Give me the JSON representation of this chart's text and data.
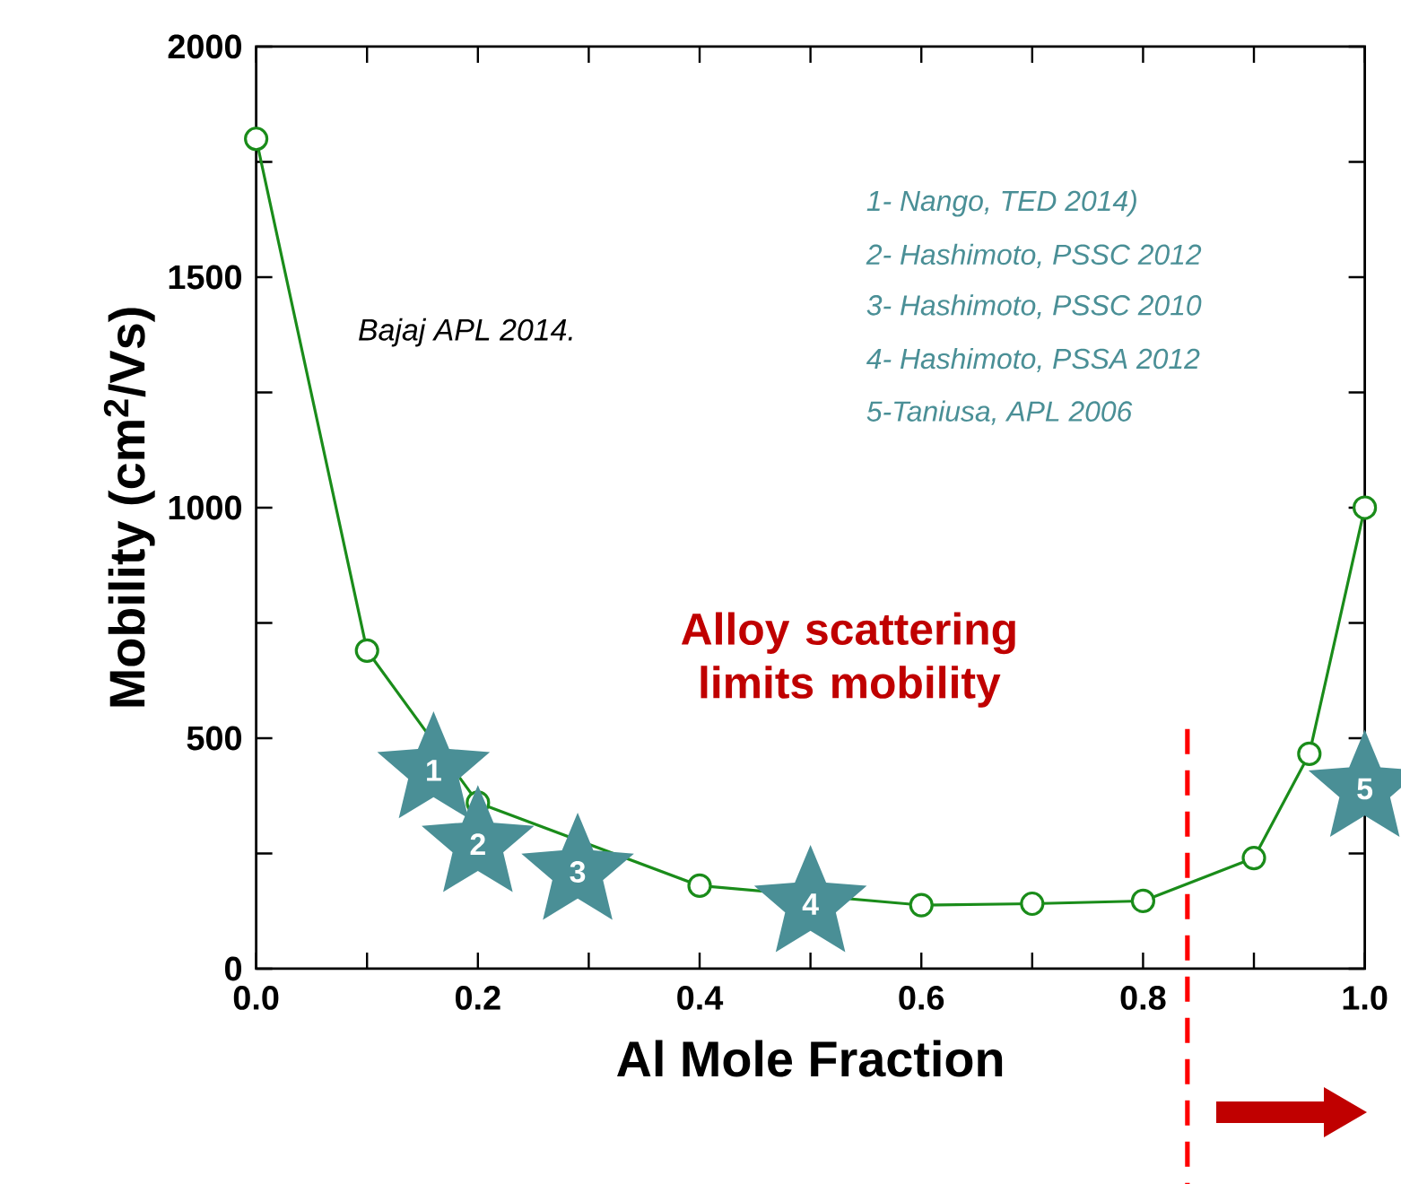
{
  "chart_data": {
    "type": "line",
    "xlabel": "Al Mole Fraction",
    "ylabel": "Mobility (cm$^{2}$/Vs)",
    "xlim": [
      0,
      1.0
    ],
    "ylim": [
      0,
      2000
    ],
    "xticks": [
      {
        "value": 0,
        "label": "0.0"
      },
      {
        "value": 0.1,
        "label": null
      },
      {
        "value": 0.2,
        "label": "0.2"
      },
      {
        "value": 0.3,
        "label": null
      },
      {
        "value": 0.4,
        "label": "0.4"
      },
      {
        "value": 0.5,
        "label": null
      },
      {
        "value": 0.6,
        "label": "0.6"
      },
      {
        "value": 0.7,
        "label": null
      },
      {
        "value": 0.8,
        "label": "0.8"
      },
      {
        "value": 0.9,
        "label": null
      },
      {
        "value": 1.0,
        "label": "1.0"
      }
    ],
    "yticks": [
      0,
      {
        "value": 250,
        "label": null
      },
      500,
      {
        "value": 750,
        "label": null
      },
      1000,
      {
        "value": 1250,
        "label": null
      },
      1500,
      {
        "value": 1750,
        "label": null
      },
      2000
    ],
    "series": [
      {
        "color": "#1a8c1a",
        "marker": "circle",
        "x": [
          0,
          0.1,
          0.2,
          0.4,
          0.6,
          0.7,
          0.8,
          0.9,
          0.95,
          1.0
        ],
        "values": [
          1800,
          690,
          360,
          180,
          138,
          141,
          147,
          240,
          466,
          1000
        ]
      },
      {
        "type": "scatter",
        "color": "#4a8f96",
        "marker": "star",
        "x": [
          0.16,
          0.2,
          0.29,
          0.5,
          1.0
        ],
        "values": [
          430,
          270,
          210,
          140,
          390
        ]
      }
    ],
    "ref_lines": [
      {
        "axis": "x",
        "value": 0.84,
        "color": "#ff0000",
        "line_style": "dashed"
      }
    ],
    "annotations": [
      "Bajaj  APL 2014.",
      "1- Nango, TED 2014)",
      "2- Hashimoto, PSSC 2012",
      "3- Hashimoto, PSSC 2010",
      "4- Hashimoto, PSSA 2012",
      "5-Taniusa, APL 2006",
      "Alloy scattering limits mobility",
      {
        "text": "1",
        "x": 0.16,
        "y": 430
      },
      {
        "text": "2",
        "x": 0.2,
        "y": 270
      },
      {
        "text": "3",
        "x": 0.29,
        "y": 210
      },
      {
        "text": "4",
        "x": 0.5,
        "y": 140
      },
      {
        "text": "5",
        "x": 1.0,
        "y": 390
      }
    ],
    "grid": false
  }
}
